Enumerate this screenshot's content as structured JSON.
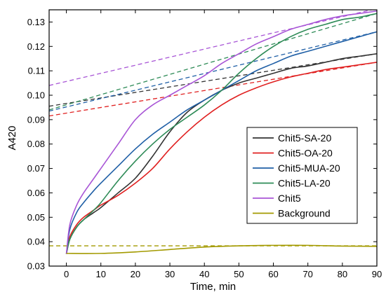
{
  "chart_data": {
    "type": "line",
    "title": "",
    "xlabel": "Time, min",
    "ylabel": "A420",
    "xlim": [
      -5,
      90
    ],
    "ylim": [
      0.03,
      0.135
    ],
    "x_ticks": [
      0,
      10,
      20,
      30,
      40,
      50,
      60,
      70,
      80,
      90
    ],
    "y_ticks": [
      0.03,
      0.04,
      0.05,
      0.06,
      0.07,
      0.08,
      0.09,
      0.1,
      0.11,
      0.12,
      0.13
    ],
    "y_tick_labels": [
      "0.03",
      "0.04",
      "0.05",
      "0.06",
      "0.07",
      "0.08",
      "0.09",
      "0.10",
      "0.11",
      "0.12",
      "0.13"
    ],
    "grid": false,
    "legend_position": "center-right",
    "series": [
      {
        "name": "Chit5-SA-20",
        "color": "#333333",
        "x": [
          0,
          1,
          3,
          5,
          8,
          10,
          15,
          20,
          25,
          30,
          35,
          40,
          45,
          50,
          55,
          60,
          65,
          70,
          75,
          80,
          85,
          90
        ],
        "y": [
          0.035,
          0.041,
          0.046,
          0.049,
          0.052,
          0.054,
          0.06,
          0.066,
          0.075,
          0.085,
          0.093,
          0.098,
          0.102,
          0.105,
          0.107,
          0.109,
          0.111,
          0.112,
          0.1135,
          0.115,
          0.116,
          0.117
        ]
      },
      {
        "name": "Chit5-OA-20",
        "color": "#e02020",
        "x": [
          0,
          1,
          3,
          5,
          8,
          10,
          15,
          20,
          25,
          30,
          35,
          40,
          45,
          50,
          55,
          60,
          65,
          70,
          75,
          80,
          85,
          90
        ],
        "y": [
          0.035,
          0.042,
          0.047,
          0.05,
          0.053,
          0.055,
          0.059,
          0.064,
          0.07,
          0.078,
          0.085,
          0.091,
          0.096,
          0.1,
          0.103,
          0.1055,
          0.1075,
          0.109,
          0.1105,
          0.1115,
          0.1125,
          0.1135
        ]
      },
      {
        "name": "Chit5-MUA-20",
        "color": "#1f5fa6",
        "x": [
          0,
          1,
          3,
          5,
          8,
          10,
          15,
          20,
          25,
          30,
          35,
          40,
          45,
          50,
          55,
          60,
          65,
          70,
          75,
          80,
          85,
          90
        ],
        "y": [
          0.035,
          0.045,
          0.052,
          0.056,
          0.061,
          0.064,
          0.071,
          0.078,
          0.084,
          0.089,
          0.094,
          0.098,
          0.102,
          0.106,
          0.11,
          0.113,
          0.116,
          0.118,
          0.12,
          0.122,
          0.124,
          0.126
        ]
      },
      {
        "name": "Chit5-LA-20",
        "color": "#2e8b57",
        "x": [
          0,
          1,
          3,
          5,
          8,
          10,
          15,
          20,
          25,
          30,
          35,
          40,
          45,
          50,
          55,
          60,
          65,
          70,
          75,
          80,
          85,
          90
        ],
        "y": [
          0.035,
          0.041,
          0.046,
          0.049,
          0.053,
          0.056,
          0.065,
          0.073,
          0.08,
          0.086,
          0.091,
          0.096,
          0.102,
          0.109,
          0.115,
          0.12,
          0.124,
          0.127,
          0.129,
          0.131,
          0.132,
          0.1335
        ]
      },
      {
        "name": "Chit5",
        "color": "#a855d6",
        "x": [
          0,
          1,
          3,
          5,
          8,
          10,
          15,
          20,
          25,
          30,
          35,
          40,
          45,
          50,
          55,
          60,
          65,
          70,
          75,
          80,
          85,
          90
        ],
        "y": [
          0.035,
          0.047,
          0.055,
          0.06,
          0.066,
          0.07,
          0.08,
          0.09,
          0.096,
          0.1,
          0.104,
          0.108,
          0.113,
          0.117,
          0.121,
          0.124,
          0.127,
          0.129,
          0.131,
          0.1325,
          0.1335,
          0.1345
        ]
      },
      {
        "name": "Background",
        "color": "#a39a00",
        "x": [
          0,
          10,
          20,
          30,
          40,
          50,
          60,
          70,
          80,
          90
        ],
        "y": [
          0.0352,
          0.0352,
          0.0358,
          0.0368,
          0.0378,
          0.0383,
          0.0385,
          0.0385,
          0.0382,
          0.0381
        ]
      }
    ],
    "linear_fits": [
      {
        "color": "#333333",
        "x": [
          -5,
          90
        ],
        "y": [
          0.0955,
          0.117
        ]
      },
      {
        "color": "#e02020",
        "x": [
          -5,
          90
        ],
        "y": [
          0.0915,
          0.1135
        ]
      },
      {
        "color": "#1f5fa6",
        "x": [
          -5,
          90
        ],
        "y": [
          0.0935,
          0.126
        ]
      },
      {
        "color": "#2e8b57",
        "x": [
          -5,
          90
        ],
        "y": [
          0.094,
          0.1335
        ]
      },
      {
        "color": "#a855d6",
        "x": [
          -5,
          90
        ],
        "y": [
          0.104,
          0.1355
        ]
      },
      {
        "color": "#a39a00",
        "x": [
          -5,
          90
        ],
        "y": [
          0.0383,
          0.0383
        ]
      }
    ]
  }
}
